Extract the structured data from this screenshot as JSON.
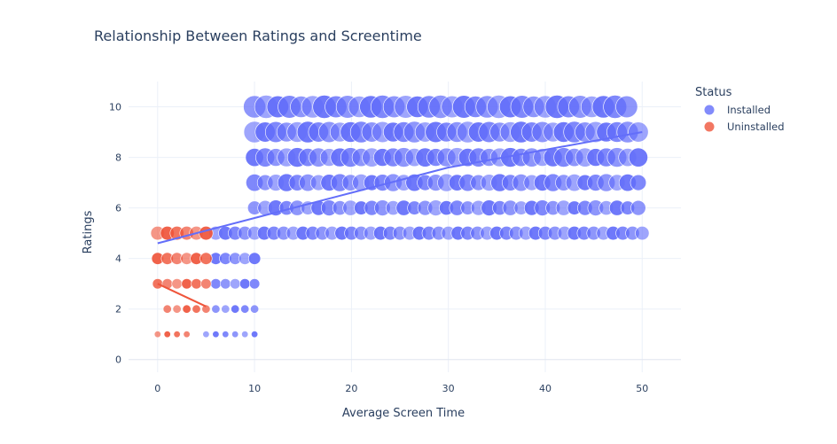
{
  "chart_data": {
    "type": "scatter",
    "title": "Relationship Between Ratings and Screentime",
    "xlabel": "Average Screen Time",
    "ylabel": "Ratings",
    "xlim": [
      -3,
      54
    ],
    "ylim": [
      -0.5,
      11
    ],
    "xticks": [
      "0",
      "10",
      "20",
      "30",
      "40",
      "50"
    ],
    "yticks": [
      "0",
      "2",
      "4",
      "6",
      "8",
      "10"
    ],
    "grid": true,
    "legend": {
      "title": "Status",
      "placement": "top-right"
    },
    "series": [
      {
        "name": "Installed",
        "color": "#636efa",
        "groups": [
          {
            "y": 1,
            "x_range": [
              5,
              10
            ],
            "step": 1,
            "size_range": [
              1,
              1
            ]
          },
          {
            "y": 2,
            "x_range": [
              6,
              10
            ],
            "step": 1,
            "size_range": [
              2,
              2
            ]
          },
          {
            "y": 3,
            "x_range": [
              6,
              10
            ],
            "step": 1,
            "size_range": [
              3,
              3
            ]
          },
          {
            "y": 4,
            "x_range": [
              6,
              10
            ],
            "step": 1,
            "size_range": [
              4,
              4
            ]
          },
          {
            "y": 5,
            "x_range": [
              6,
              50
            ],
            "step": 1,
            "size_range": [
              5,
              5
            ],
            "x_gaps": [
              [
                23,
                24
              ],
              [
                39,
                40
              ]
            ]
          },
          {
            "y": 6,
            "x_range": [
              10,
              50
            ],
            "step": 1.1,
            "size_range": [
              5,
              6
            ]
          },
          {
            "y": 7,
            "x_range": [
              10,
              50
            ],
            "step": 1.1,
            "size_range": [
              6,
              7
            ]
          },
          {
            "y": 8,
            "x_range": [
              10,
              50
            ],
            "step": 1.1,
            "size_range": [
              7,
              8
            ]
          },
          {
            "y": 9,
            "x_range": [
              10,
              50
            ],
            "step": 1.1,
            "size_range": [
              8,
              9
            ]
          },
          {
            "y": 10,
            "x_range": [
              10,
              49
            ],
            "step": 1.2,
            "size_range": [
              9,
              10
            ]
          }
        ],
        "trend": [
          [
            0,
            4.6
          ],
          [
            10,
            5.6
          ],
          [
            20,
            6.6
          ],
          [
            30,
            7.6
          ],
          [
            40,
            8.3
          ],
          [
            50,
            9.0
          ]
        ]
      },
      {
        "name": "Uninstalled",
        "color": "#ef553b",
        "groups": [
          {
            "y": 1,
            "x_range": [
              0,
              3
            ],
            "step": 1,
            "size_range": [
              1,
              1
            ]
          },
          {
            "y": 2,
            "x_range": [
              1,
              5
            ],
            "step": 1,
            "size_range": [
              2,
              2
            ]
          },
          {
            "y": 3,
            "x_range": [
              0,
              5
            ],
            "step": 1,
            "size_range": [
              3,
              3
            ]
          },
          {
            "y": 4,
            "x_range": [
              0,
              5
            ],
            "step": 1,
            "size_range": [
              4,
              4
            ]
          },
          {
            "y": 5,
            "x_range": [
              0,
              5
            ],
            "step": 1,
            "size_range": [
              5,
              5
            ]
          }
        ],
        "trend": [
          [
            0,
            3.0
          ],
          [
            5,
            2.1
          ]
        ]
      }
    ]
  }
}
